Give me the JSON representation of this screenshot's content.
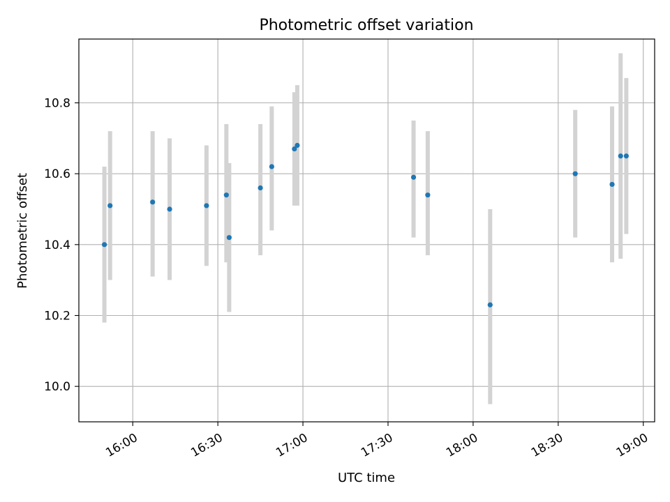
{
  "chart_data": {
    "type": "scatter",
    "title": "Photometric offset variation",
    "xlabel": "UTC time",
    "ylabel": "Photometric offset",
    "grid": true,
    "xlim": [
      "15:41",
      "19:04"
    ],
    "ylim": [
      9.9,
      10.98
    ],
    "x_ticks": [
      "16:00",
      "16:30",
      "17:00",
      "17:30",
      "18:00",
      "18:30",
      "19:00"
    ],
    "y_ticks": [
      "10.0",
      "10.2",
      "10.4",
      "10.6",
      "10.8"
    ],
    "colors": {
      "point": "#1f77b4",
      "errorbar": "#d3d3d3",
      "grid": "#b0b0b0"
    },
    "points": [
      {
        "time": "15:50",
        "y": 10.4,
        "ylow": 10.18,
        "yhigh": 10.62
      },
      {
        "time": "15:52",
        "y": 10.51,
        "ylow": 10.3,
        "yhigh": 10.72
      },
      {
        "time": "16:07",
        "y": 10.52,
        "ylow": 10.31,
        "yhigh": 10.72
      },
      {
        "time": "16:13",
        "y": 10.5,
        "ylow": 10.3,
        "yhigh": 10.7
      },
      {
        "time": "16:26",
        "y": 10.51,
        "ylow": 10.34,
        "yhigh": 10.68
      },
      {
        "time": "16:33",
        "y": 10.54,
        "ylow": 10.35,
        "yhigh": 10.74
      },
      {
        "time": "16:34",
        "y": 10.42,
        "ylow": 10.21,
        "yhigh": 10.63
      },
      {
        "time": "16:45",
        "y": 10.56,
        "ylow": 10.37,
        "yhigh": 10.74
      },
      {
        "time": "16:49",
        "y": 10.62,
        "ylow": 10.44,
        "yhigh": 10.79
      },
      {
        "time": "16:57",
        "y": 10.67,
        "ylow": 10.51,
        "yhigh": 10.83
      },
      {
        "time": "16:58",
        "y": 10.68,
        "ylow": 10.51,
        "yhigh": 10.85
      },
      {
        "time": "17:39",
        "y": 10.59,
        "ylow": 10.42,
        "yhigh": 10.75
      },
      {
        "time": "17:44",
        "y": 10.54,
        "ylow": 10.37,
        "yhigh": 10.72
      },
      {
        "time": "18:06",
        "y": 10.23,
        "ylow": 9.95,
        "yhigh": 10.5
      },
      {
        "time": "18:36",
        "y": 10.6,
        "ylow": 10.42,
        "yhigh": 10.78
      },
      {
        "time": "18:49",
        "y": 10.57,
        "ylow": 10.35,
        "yhigh": 10.79
      },
      {
        "time": "18:52",
        "y": 10.65,
        "ylow": 10.36,
        "yhigh": 10.94
      },
      {
        "time": "18:54",
        "y": 10.65,
        "ylow": 10.43,
        "yhigh": 10.87
      }
    ]
  }
}
